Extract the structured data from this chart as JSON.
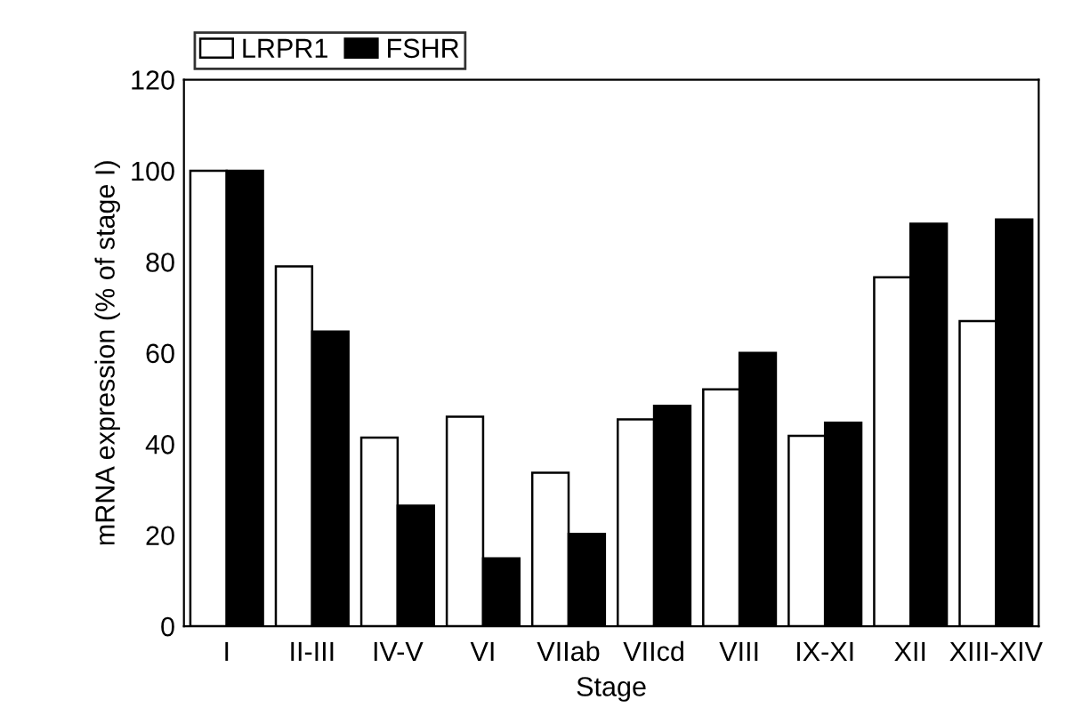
{
  "chart_data": {
    "type": "bar",
    "xlabel": "Stage",
    "ylabel": "mRNA expression (% of stage I)",
    "categories": [
      "I",
      "II-III",
      "IV-V",
      "VI",
      "VIIab",
      "VIIcd",
      "VIII",
      "IX-XI",
      "XII",
      "XIII-XIV"
    ],
    "series": [
      {
        "name": "LRPR1",
        "color": "#ffffff",
        "values": [
          100,
          79,
          41.4,
          46,
          33.7,
          45.4,
          52,
          41.8,
          76.6,
          67
        ]
      },
      {
        "name": "FSHR",
        "color": "#000000",
        "values": [
          100,
          64.7,
          26.5,
          14.9,
          20.3,
          48.4,
          60,
          44.7,
          88.4,
          89.3
        ]
      }
    ],
    "ylim": [
      0,
      120
    ],
    "yticks": [
      0,
      20,
      40,
      60,
      80,
      100,
      120
    ],
    "grid": false,
    "legend": "top left"
  }
}
